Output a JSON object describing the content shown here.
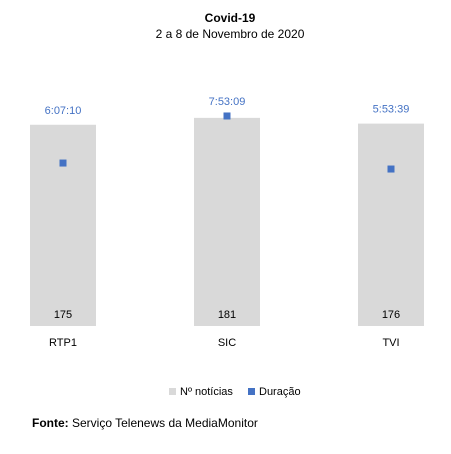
{
  "chart_data": {
    "type": "bar",
    "title": "Covid-19",
    "subtitle": "2 a 8 de Novembro de 2020",
    "categories": [
      "RTP1",
      "SIC",
      "TVI"
    ],
    "series": [
      {
        "name": "Nº notícias",
        "type": "bar",
        "values": [
          175,
          181,
          176
        ],
        "color": "#d9d9d9"
      },
      {
        "name": "Duração",
        "type": "scatter",
        "values": [
          6.119,
          7.886,
          5.894
        ],
        "labels": [
          "6:07:10",
          "7:53:09",
          "5:53:39"
        ],
        "color": "#4472c4"
      }
    ],
    "primary_axis_range": [
      0,
      220
    ],
    "secondary_axis_range": [
      0,
      9.5
    ],
    "axes_visible": false,
    "grid": false,
    "legend": "bottom",
    "label_color": "#4472c4"
  },
  "footer": {
    "source_label": "Fonte:",
    "source_text": " Serviço Telenews da MediaMonitor"
  }
}
